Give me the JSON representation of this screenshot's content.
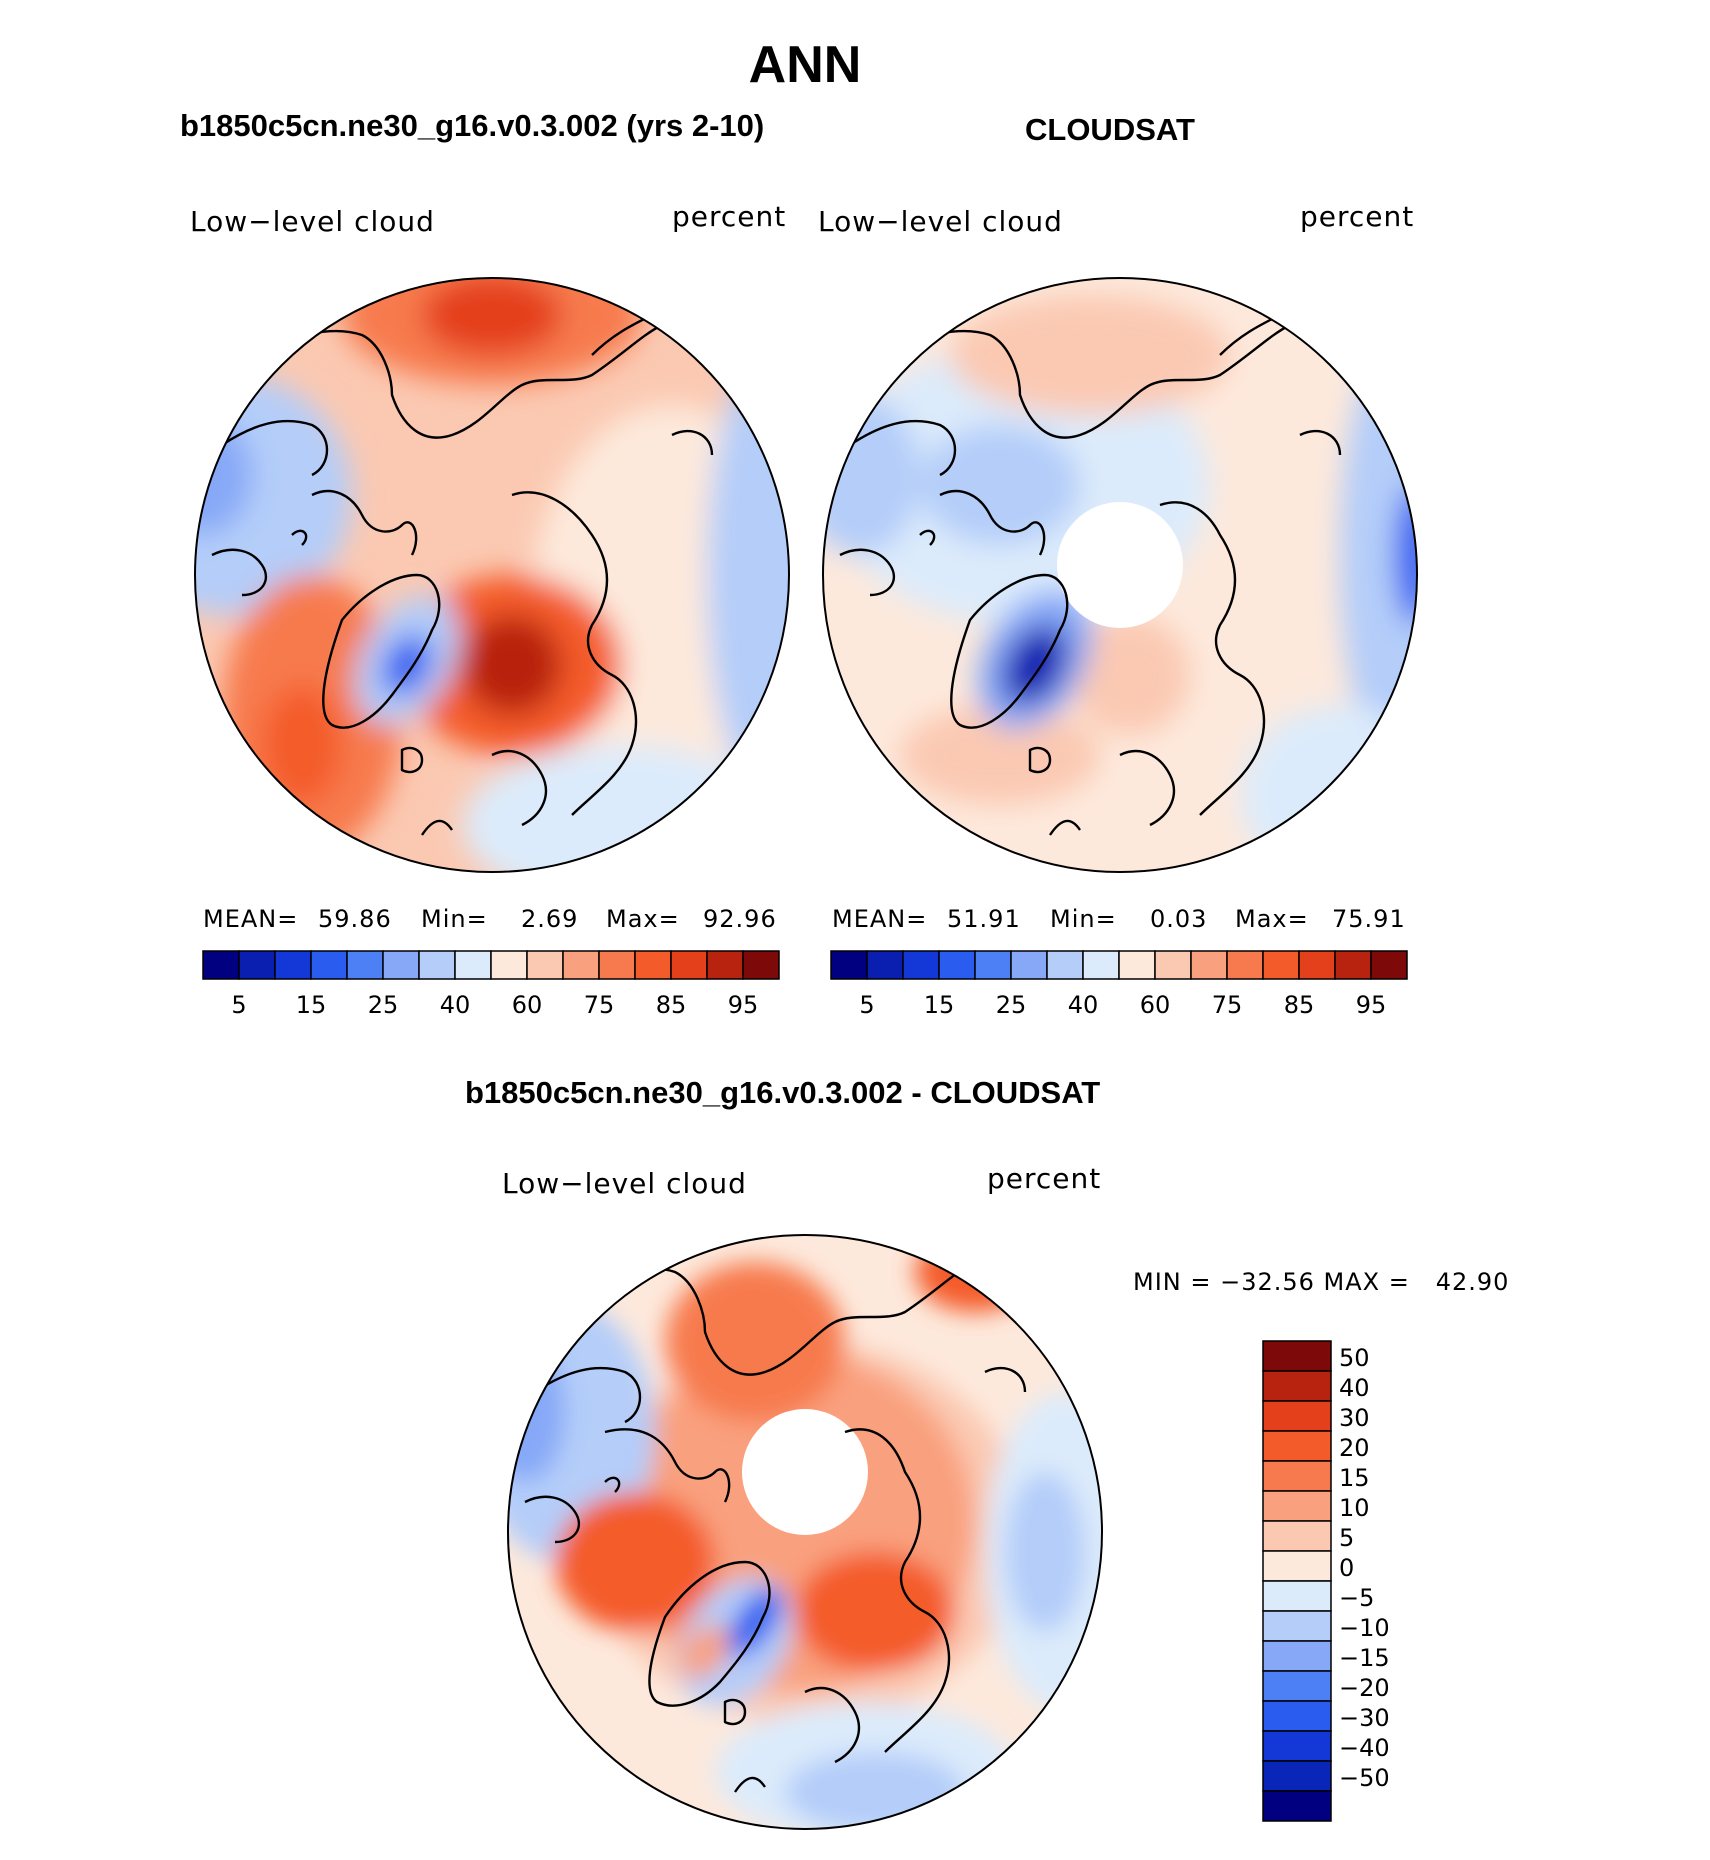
{
  "figure": {
    "season": "ANN",
    "colors": {
      "abs_scale": [
        "#000080",
        "#0a1fb0",
        "#1438d8",
        "#2a5cf0",
        "#4d7ff5",
        "#86a8f7",
        "#b4cdf9",
        "#dcebfb",
        "#fde9dc",
        "#fbc9b2",
        "#f9a07e",
        "#f77a4e",
        "#f45b2a",
        "#e4401b",
        "#b8230f",
        "#7d0a08"
      ],
      "diff_scale": [
        "#000080",
        "#0a26b8",
        "#1438d8",
        "#2a5cf0",
        "#4d7ff5",
        "#86a8f7",
        "#b4cdf9",
        "#dcebfb",
        "#fde9dc",
        "#fbc9b2",
        "#f9a07e",
        "#f77a4e",
        "#f45b2a",
        "#e4401b",
        "#b8230f",
        "#7d0a08"
      ],
      "coast": "#000000"
    }
  },
  "panels": [
    {
      "case": "b1850c5cn.ne30_g16.v0.3.002 (yrs 2-10)",
      "variable": "Low−level cloud",
      "units": "percent",
      "mean_label": "MEAN=",
      "mean_value": "59.86",
      "min_label": "Min=",
      "min_value": "2.69",
      "max_label": "Max=",
      "max_value": "92.96",
      "colorbar_ticks": [
        "5",
        "15",
        "25",
        "40",
        "60",
        "75",
        "85",
        "95"
      ]
    },
    {
      "case": "CLOUDSAT",
      "variable": "Low−level cloud",
      "units": "percent",
      "mean_label": "MEAN=",
      "mean_value": "51.91",
      "min_label": "Min=",
      "min_value": "0.03",
      "max_label": "Max=",
      "max_value": "75.91",
      "colorbar_ticks": [
        "5",
        "15",
        "25",
        "40",
        "60",
        "75",
        "85",
        "95"
      ]
    }
  ],
  "difference": {
    "title": "b1850c5cn.ne30_g16.v0.3.002 - CLOUDSAT",
    "variable": "Low−level cloud",
    "units": "percent",
    "minmax_text": "MIN = −32.56 MAX =   42.90",
    "colorbar_ticks": [
      "50",
      "40",
      "30",
      "20",
      "15",
      "10",
      "5",
      "0",
      "−5",
      "−10",
      "−15",
      "−20",
      "−30",
      "−40",
      "−50"
    ]
  }
}
